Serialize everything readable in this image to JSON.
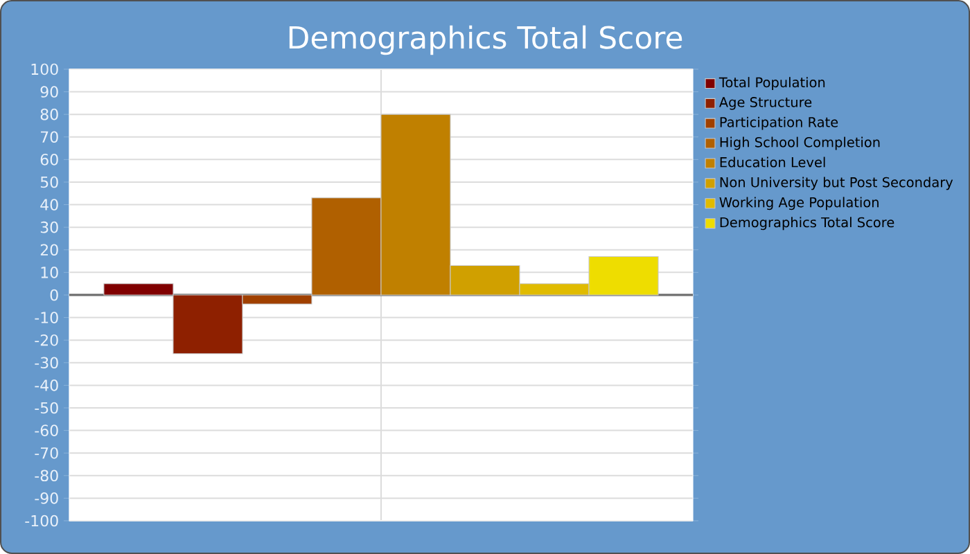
{
  "chart_data": {
    "type": "bar",
    "title": "Demographics Total Score",
    "categories": [
      null
    ],
    "series": [
      {
        "name": "Total Population",
        "color": "#800000",
        "values": [
          5
        ]
      },
      {
        "name": "Age Structure",
        "color": "#8e2000",
        "values": [
          -26
        ]
      },
      {
        "name": "Participation Rate",
        "color": "#a04000",
        "values": [
          -4
        ]
      },
      {
        "name": "High School Completion",
        "color": "#b06000",
        "values": [
          43
        ]
      },
      {
        "name": "Education Level",
        "color": "#c08000",
        "values": [
          80
        ]
      },
      {
        "name": "Non University but Post Secondary",
        "color": "#d0a000",
        "values": [
          13
        ]
      },
      {
        "name": "Working Age Population",
        "color": "#e0bb00",
        "values": [
          5
        ]
      },
      {
        "name": "Demographics Total Score",
        "color": "#eedd00",
        "values": [
          17
        ]
      }
    ],
    "ylim": [
      -100,
      100
    ],
    "yticks": [
      -100,
      -90,
      -80,
      -70,
      -60,
      -50,
      -40,
      -30,
      -20,
      -10,
      0,
      10,
      20,
      30,
      40,
      50,
      60,
      70,
      80,
      90,
      100
    ],
    "grid": true,
    "legend": "right"
  }
}
